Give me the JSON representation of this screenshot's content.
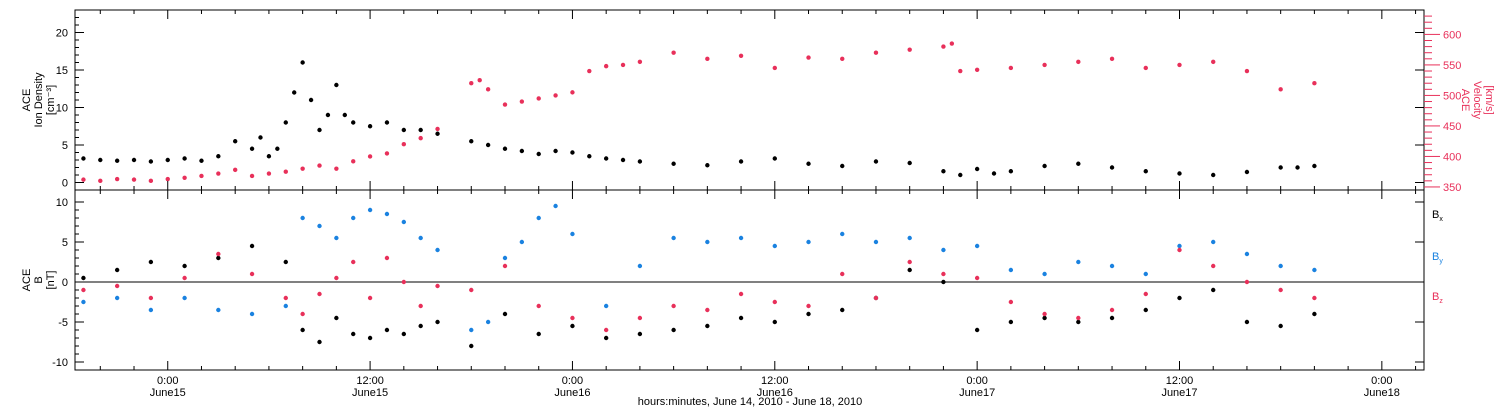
{
  "chart_data": [
    {
      "type": "scatter",
      "panel": "top",
      "left_axis_label_lines": [
        "ACE",
        "Ion Density",
        "[cm⁻³]"
      ],
      "right_axis_label_lines": [
        "ACE",
        "Velocity",
        "[km/s]"
      ],
      "ylim_left": [
        -1,
        23
      ],
      "yticks_left": [
        0,
        5,
        10,
        15,
        20
      ],
      "ylim_right": [
        345,
        640
      ],
      "yticks_right": [
        350,
        400,
        450,
        500,
        550,
        600
      ],
      "xlim_hours": [
        -5.5,
        74.5
      ],
      "series": [
        {
          "name": "Ion Density",
          "color": "#000000",
          "axis": "left",
          "x_hours": [
            -5,
            -4,
            -3,
            -2,
            -1,
            0,
            1,
            2,
            3,
            4,
            5,
            5.5,
            6,
            6.5,
            7,
            7.5,
            8,
            8.5,
            9,
            9.5,
            10,
            10.5,
            11,
            12,
            13,
            14,
            15,
            16,
            18,
            19,
            20,
            21,
            22,
            23,
            24,
            25,
            26,
            27,
            28,
            30,
            32,
            34,
            36,
            38,
            40,
            42,
            44,
            46,
            47,
            48,
            49,
            50,
            52,
            54,
            56,
            58,
            60,
            62,
            64,
            66,
            67,
            68
          ],
          "values": [
            3.2,
            3.0,
            2.9,
            3.0,
            2.8,
            3.0,
            3.2,
            2.9,
            3.5,
            5.5,
            4.5,
            6,
            3.5,
            4.5,
            8,
            12,
            16,
            11,
            7,
            9,
            13,
            9,
            8,
            7.5,
            8,
            7,
            7,
            6.5,
            5.5,
            5.0,
            4.5,
            4.2,
            3.8,
            4.2,
            4.0,
            3.5,
            3.2,
            3.0,
            2.8,
            2.5,
            2.3,
            2.8,
            3.2,
            2.5,
            2.2,
            2.8,
            2.6,
            1.5,
            1.0,
            1.8,
            1.2,
            1.5,
            2.2,
            2.5,
            2.0,
            1.5,
            1.2,
            1.0,
            1.4,
            2.0,
            2.0,
            2.2
          ]
        },
        {
          "name": "Velocity",
          "color": "#e8305a",
          "axis": "right",
          "x_hours": [
            -5,
            -4,
            -3,
            -2,
            -1,
            0,
            1,
            2,
            3,
            4,
            5,
            6,
            7,
            8,
            9,
            10,
            11,
            12,
            13,
            14,
            15,
            16,
            18,
            18.5,
            19,
            20,
            21,
            22,
            23,
            24,
            25,
            26,
            27,
            28,
            30,
            32,
            34,
            36,
            38,
            40,
            42,
            44,
            46,
            46.5,
            47,
            48,
            50,
            52,
            54,
            56,
            58,
            60,
            62,
            64,
            66,
            68
          ],
          "values": [
            362,
            360,
            363,
            362,
            360,
            363,
            365,
            368,
            372,
            378,
            368,
            372,
            375,
            380,
            385,
            380,
            392,
            400,
            405,
            420,
            430,
            445,
            520,
            525,
            510,
            485,
            490,
            495,
            500,
            505,
            540,
            548,
            550,
            555,
            570,
            560,
            565,
            545,
            562,
            560,
            570,
            575,
            580,
            585,
            540,
            542,
            545,
            550,
            555,
            560,
            545,
            550,
            555,
            540,
            510,
            520
          ]
        }
      ]
    },
    {
      "type": "scatter",
      "panel": "bottom",
      "axis_label_lines": [
        "ACE",
        "B",
        "[nT]"
      ],
      "ylim": [
        -11,
        11.5
      ],
      "yticks": [
        -10,
        -5,
        0,
        5,
        10
      ],
      "xlim_hours": [
        -5.5,
        74.5
      ],
      "legend_placement": "right",
      "series": [
        {
          "name": "Bx",
          "label_main": "B",
          "label_sub": "x",
          "color": "#000000",
          "x_hours": [
            -5,
            -3,
            -1,
            1,
            3,
            5,
            7,
            8,
            9,
            10,
            11,
            12,
            13,
            14,
            15,
            16,
            18,
            20,
            22,
            24,
            26,
            28,
            30,
            32,
            34,
            36,
            38,
            40,
            42,
            44,
            46,
            48,
            50,
            52,
            54,
            56,
            58,
            60,
            62,
            64,
            66,
            68
          ],
          "values": [
            0.5,
            1.5,
            2.5,
            2.0,
            3.0,
            4.5,
            2.5,
            -6.0,
            -7.5,
            -4.5,
            -6.5,
            -7.0,
            -6.0,
            -6.5,
            -5.5,
            -5.0,
            -8.0,
            -4.0,
            -6.5,
            -5.5,
            -7.0,
            -6.5,
            -6.0,
            -5.5,
            -4.5,
            -5.0,
            -4.0,
            -3.5,
            -2.0,
            1.5,
            0.0,
            -6.0,
            -5.0,
            -4.5,
            -5.0,
            -4.5,
            -3.5,
            -2.0,
            -1.0,
            -5.0,
            -5.5,
            -4.0
          ]
        },
        {
          "name": "By",
          "label_main": "B",
          "label_sub": "y",
          "color": "#1a82e0",
          "x_hours": [
            -5,
            -3,
            -1,
            1,
            3,
            5,
            7,
            8,
            9,
            10,
            11,
            12,
            13,
            14,
            15,
            16,
            18,
            19,
            20,
            21,
            22,
            23,
            24,
            26,
            28,
            30,
            32,
            34,
            36,
            38,
            40,
            42,
            44,
            46,
            48,
            50,
            52,
            54,
            56,
            58,
            60,
            62,
            64,
            66,
            68
          ],
          "values": [
            -2.5,
            -2.0,
            -3.5,
            -2.0,
            -3.5,
            -4.0,
            -3.0,
            8.0,
            7.0,
            5.5,
            8.0,
            9.0,
            8.5,
            7.5,
            5.5,
            4.0,
            -6.0,
            -5.0,
            3.0,
            5.0,
            8.0,
            9.5,
            6.0,
            -3.0,
            2.0,
            5.5,
            5.0,
            5.5,
            4.5,
            5.0,
            6.0,
            5.0,
            5.5,
            4.0,
            4.5,
            1.5,
            1.0,
            2.5,
            2.0,
            1.0,
            4.5,
            5.0,
            3.5,
            2.0,
            1.5
          ]
        },
        {
          "name": "Bz",
          "label_main": "B",
          "label_sub": "z",
          "color": "#e8305a",
          "x_hours": [
            -5,
            -3,
            -1,
            1,
            3,
            5,
            7,
            8,
            9,
            10,
            11,
            12,
            13,
            14,
            15,
            16,
            18,
            20,
            22,
            24,
            26,
            28,
            30,
            32,
            34,
            36,
            38,
            40,
            42,
            44,
            46,
            48,
            50,
            52,
            54,
            56,
            58,
            60,
            62,
            64,
            66,
            68
          ],
          "values": [
            -1.0,
            -0.5,
            -2.0,
            0.5,
            3.5,
            1.0,
            -2.0,
            -4.0,
            -1.5,
            0.5,
            2.5,
            -2.0,
            3.0,
            0.0,
            -3.0,
            -0.5,
            -1.0,
            2.0,
            -3.0,
            -4.5,
            -6.0,
            -4.5,
            -3.0,
            -3.5,
            -1.5,
            -2.5,
            -3.0,
            1.0,
            -2.0,
            2.5,
            1.0,
            0.5,
            -2.5,
            -4.0,
            -4.5,
            -3.5,
            -1.5,
            4.0,
            2.0,
            0.0,
            -1.0,
            -2.0
          ]
        }
      ]
    }
  ],
  "x_axis": {
    "tick_hours": [
      0,
      12,
      24,
      36,
      48,
      60,
      72
    ],
    "tick_time_labels": [
      "0:00",
      "12:00",
      "0:00",
      "12:00",
      "0:00",
      "12:00",
      "0:00"
    ],
    "tick_date_labels": [
      "June15",
      "June15",
      "June16",
      "June16",
      "June17",
      "June17",
      "June18"
    ],
    "title": "hours:minutes, June 14, 2010 - June 18, 2010"
  }
}
